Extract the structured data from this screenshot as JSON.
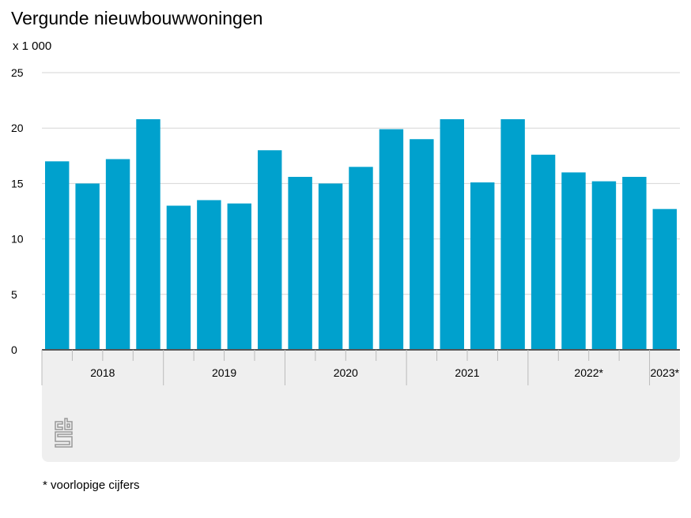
{
  "title": "Vergunde nieuwbouwwoningen",
  "unit": "x 1 000",
  "footnote": "* voorlopige cijfers",
  "chart_data": {
    "type": "bar",
    "title": "Vergunde nieuwbouwwoningen",
    "ylabel": "x 1 000",
    "ylim": [
      0,
      25
    ],
    "yticks": [
      0,
      5,
      10,
      15,
      20,
      25
    ],
    "grid": true,
    "color": "#00a1cd",
    "categories": [
      "2018 Q1",
      "2018 Q2",
      "2018 Q3",
      "2018 Q4",
      "2019 Q1",
      "2019 Q2",
      "2019 Q3",
      "2019 Q4",
      "2020 Q1",
      "2020 Q2",
      "2020 Q3",
      "2020 Q4",
      "2021 Q1",
      "2021 Q2",
      "2021 Q3",
      "2021 Q4",
      "2022* Q1",
      "2022* Q2",
      "2022* Q3",
      "2022* Q4",
      "2023* Q1"
    ],
    "values": [
      17.0,
      15.0,
      17.2,
      20.8,
      13.0,
      13.5,
      13.2,
      18.0,
      15.6,
      15.0,
      16.5,
      19.9,
      19.0,
      20.8,
      15.1,
      20.8,
      17.6,
      16.0,
      15.2,
      15.6,
      12.7
    ],
    "year_groups": [
      {
        "label": "2018",
        "quarters": 4
      },
      {
        "label": "2019",
        "quarters": 4
      },
      {
        "label": "2020",
        "quarters": 4
      },
      {
        "label": "2021",
        "quarters": 4
      },
      {
        "label": "2022*",
        "quarters": 4
      },
      {
        "label": "2023*",
        "quarters": 1
      }
    ]
  }
}
